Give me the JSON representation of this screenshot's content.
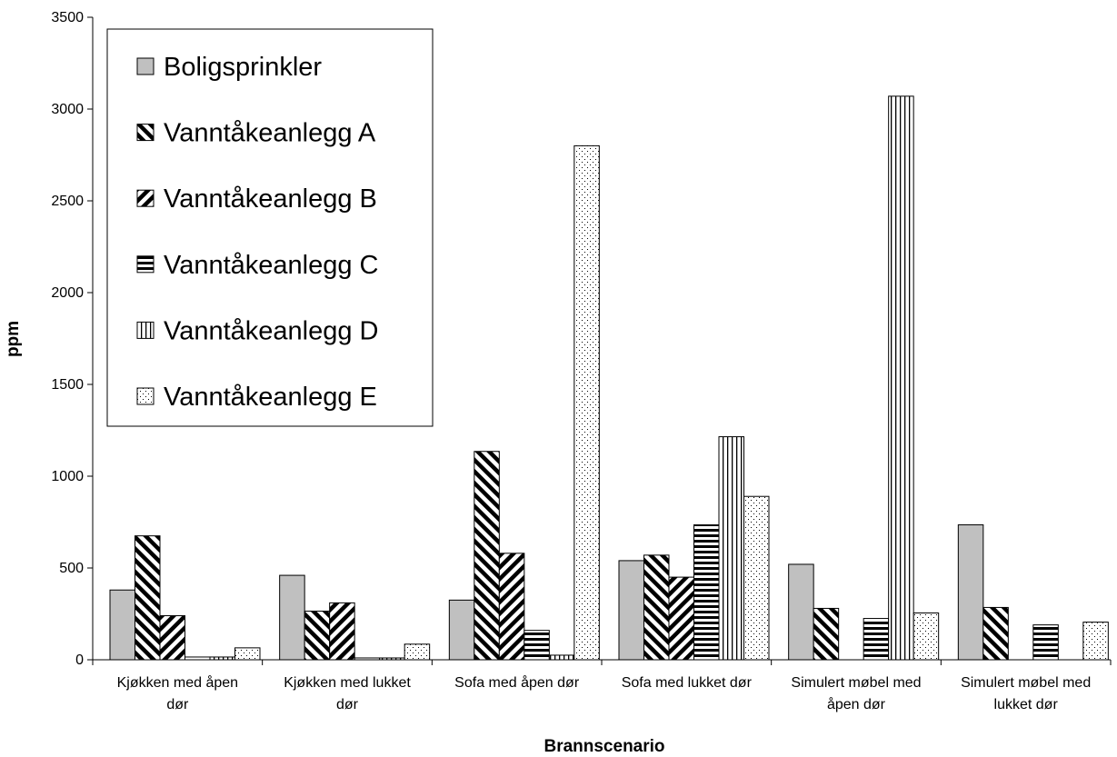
{
  "chart_data": {
    "type": "bar",
    "title": "",
    "xlabel": "Brannscenario",
    "ylabel": "ppm",
    "ylim": [
      0,
      3500
    ],
    "yticks": [
      0,
      500,
      1000,
      1500,
      2000,
      2500,
      3000,
      3500
    ],
    "grid": false,
    "legend_position": "top-left",
    "categories": [
      [
        "Kjøkken med åpen",
        "dør"
      ],
      [
        "Kjøkken med lukket",
        "dør"
      ],
      [
        "Sofa med åpen dør"
      ],
      [
        "Sofa med lukket dør"
      ],
      [
        "Simulert møbel med",
        "åpen dør"
      ],
      [
        "Simulert møbel med",
        "lukket dør"
      ]
    ],
    "series": [
      {
        "name": "Boligsprinkler",
        "pattern": "solid-gray",
        "values": [
          380,
          460,
          325,
          540,
          520,
          735
        ]
      },
      {
        "name": "Vanntåkeanlegg A",
        "pattern": "diag-right",
        "values": [
          675,
          265,
          1135,
          570,
          280,
          285
        ]
      },
      {
        "name": "Vanntåkeanlegg B",
        "pattern": "diag-left",
        "values": [
          240,
          310,
          580,
          450,
          0,
          0
        ]
      },
      {
        "name": "Vanntåkeanlegg C",
        "pattern": "horizontal",
        "values": [
          15,
          10,
          160,
          735,
          225,
          190
        ]
      },
      {
        "name": "Vanntåkeanlegg D",
        "pattern": "vertical",
        "values": [
          15,
          10,
          25,
          1215,
          3070,
          0
        ]
      },
      {
        "name": "Vanntåkeanlegg E",
        "pattern": "dots",
        "values": [
          65,
          85,
          2800,
          890,
          255,
          205
        ]
      }
    ]
  }
}
